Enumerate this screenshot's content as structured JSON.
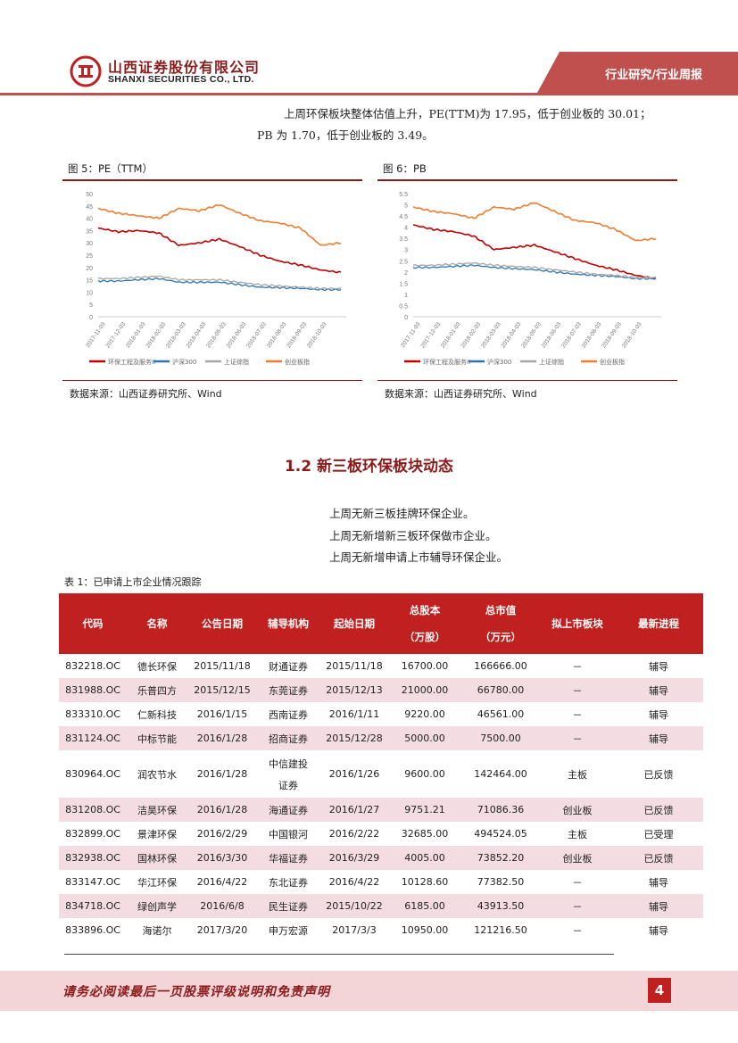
{
  "header": {
    "company_cn": "山西证券股份有限公司",
    "company_en": "SHANXI SECURITIES CO., LTD.",
    "tab_label": "行业研究/行业周报"
  },
  "intro": {
    "line1": "上周环保板块整体估值上升，PE(TTM)为 17.95，低于创业板的 30.01；",
    "line2": "PB 为 1.70，低于创业板的 3.49。"
  },
  "figure5": {
    "title": "图 5：PE（TTM）",
    "source": "数据来源：山西证券研究所、Wind",
    "legend": [
      "环保工程及服务II",
      "沪深300",
      "上证综指",
      "创业板指"
    ],
    "yticks": [
      "50",
      "45",
      "40",
      "35",
      "30",
      "25",
      "20",
      "15",
      "10",
      "5",
      "0"
    ],
    "xticks": [
      "2017-11-03",
      "2017-12-03",
      "2018-01-03",
      "2018-02-03",
      "2018-03-03",
      "2018-04-03",
      "2018-05-03",
      "2018-06-03",
      "2018-07-03",
      "2018-08-03",
      "2018-09-03",
      "2018-10-03"
    ]
  },
  "figure6": {
    "title": "图 6：PB",
    "source": "数据来源：山西证券研究所、Wind",
    "legend": [
      "环保工程及服务II",
      "沪深300",
      "上证综指",
      "创业板指"
    ],
    "yticks": [
      "5.5",
      "5",
      "4.5",
      "4",
      "3.5",
      "3",
      "2.5",
      "2",
      "1.5",
      "1",
      "0.5",
      "0"
    ],
    "xticks": [
      "2017-11-03",
      "2017-12-03",
      "2018-01-03",
      "2018-02-03",
      "2018-03-03",
      "2018-04-03",
      "2018-05-03",
      "2018-06-03",
      "2018-07-03",
      "2018-08-03",
      "2018-09-03",
      "2018-10-03"
    ]
  },
  "colors": {
    "env": "#c00000",
    "hs300": "#2e75b6",
    "sh": "#a6a6a6",
    "cyb": "#ed7d31"
  },
  "chart_data": [
    {
      "type": "line",
      "title": "PE（TTM）",
      "x": [
        "2017-11-03",
        "2017-12-03",
        "2018-01-03",
        "2018-02-03",
        "2018-03-03",
        "2018-04-03",
        "2018-05-03",
        "2018-06-03",
        "2018-07-03",
        "2018-08-03",
        "2018-09-03",
        "2018-10-03",
        "2018-11-02"
      ],
      "ylim": [
        0,
        50
      ],
      "series": [
        {
          "name": "环保工程及服务II",
          "values": [
            36,
            34.5,
            35,
            34,
            29,
            30,
            31.5,
            28.5,
            25,
            22.5,
            21,
            19,
            17.95
          ]
        },
        {
          "name": "沪深300",
          "values": [
            14.5,
            14.5,
            15,
            15.5,
            14,
            14,
            14,
            13,
            12,
            11.8,
            11.5,
            11,
            11
          ]
        },
        {
          "name": "上证综指",
          "values": [
            15.5,
            15.5,
            16,
            16.5,
            15,
            15,
            15,
            14,
            13,
            12.5,
            12,
            11.5,
            11.5
          ]
        },
        {
          "name": "创业板指",
          "values": [
            44,
            42,
            41,
            40,
            44,
            43,
            45.5,
            42,
            39,
            38,
            36,
            29,
            30.01
          ]
        }
      ]
    },
    {
      "type": "line",
      "title": "PB",
      "x": [
        "2017-11-03",
        "2017-12-03",
        "2018-01-03",
        "2018-02-03",
        "2018-03-03",
        "2018-04-03",
        "2018-05-03",
        "2018-06-03",
        "2018-07-03",
        "2018-08-03",
        "2018-09-03",
        "2018-10-03",
        "2018-11-02"
      ],
      "ylim": [
        0,
        5.5
      ],
      "series": [
        {
          "name": "环保工程及服务II",
          "values": [
            4.1,
            3.9,
            3.8,
            3.6,
            3.0,
            3.1,
            3.2,
            2.9,
            2.6,
            2.3,
            2.1,
            1.85,
            1.7
          ]
        },
        {
          "name": "沪深300",
          "values": [
            2.2,
            2.2,
            2.25,
            2.3,
            2.2,
            2.15,
            2.1,
            2.0,
            1.9,
            1.85,
            1.8,
            1.7,
            1.7
          ]
        },
        {
          "name": "上证综指",
          "values": [
            2.3,
            2.3,
            2.35,
            2.4,
            2.3,
            2.25,
            2.2,
            2.1,
            2.0,
            1.9,
            1.85,
            1.75,
            1.75
          ]
        },
        {
          "name": "创业板指",
          "values": [
            4.9,
            4.7,
            4.6,
            4.4,
            4.9,
            4.8,
            5.1,
            4.7,
            4.3,
            4.2,
            3.9,
            3.4,
            3.49
          ]
        }
      ]
    }
  ],
  "section": {
    "title": "1.2  新三板环保板块动态",
    "lines": [
      "上周无新三板挂牌环保企业。",
      "上周无新增新三板环保做市企业。",
      "上周无新增申请上市辅导环保企业。"
    ]
  },
  "table": {
    "title": "表 1：已申请上市企业情况跟踪",
    "headers": [
      "代码",
      "名称",
      "公告日期",
      "辅导机构",
      "起始日期",
      "总股本",
      "（万股）",
      "总市值",
      "（万元）",
      "拟上市板块",
      "最新进程"
    ],
    "rows": [
      [
        "832218.OC",
        "德长环保",
        "2015/11/18",
        "财通证券",
        "2015/11/18",
        "16700.00",
        "166666.00",
        "－",
        "辅导"
      ],
      [
        "831988.OC",
        "乐普四方",
        "2015/12/15",
        "东莞证券",
        "2015/12/13",
        "21000.00",
        "66780.00",
        "－",
        "辅导"
      ],
      [
        "833310.OC",
        "仁新科技",
        "2016/1/15",
        "西南证券",
        "2016/1/11",
        "9220.00",
        "46561.00",
        "－",
        "辅导"
      ],
      [
        "831124.OC",
        "中标节能",
        "2016/1/28",
        "招商证券",
        "2015/12/28",
        "5000.00",
        "7500.00",
        "－",
        "辅导"
      ],
      [
        "830964.OC",
        "润农节水",
        "2016/1/28",
        "中信建投",
        "2016/1/26",
        "9600.00",
        "142464.00",
        "主板",
        "已反馈",
        "证券"
      ],
      [
        "831208.OC",
        "洁昊环保",
        "2016/1/28",
        "海通证券",
        "2016/1/27",
        "9751.21",
        "71086.36",
        "创业板",
        "已反馈"
      ],
      [
        "832899.OC",
        "景津环保",
        "2016/2/29",
        "中国银河",
        "2016/2/22",
        "32685.00",
        "494524.05",
        "主板",
        "已受理"
      ],
      [
        "832938.OC",
        "国林环保",
        "2016/3/30",
        "华福证券",
        "2016/3/29",
        "4005.00",
        "73852.20",
        "创业板",
        "已反馈"
      ],
      [
        "833147.OC",
        "华江环保",
        "2016/4/22",
        "东北证券",
        "2016/4/22",
        "10128.60",
        "77382.50",
        "－",
        "辅导"
      ],
      [
        "834718.OC",
        "绿创声学",
        "2016/6/8",
        "民生证券",
        "2015/10/22",
        "6185.00",
        "43913.50",
        "－",
        "辅导"
      ],
      [
        "833896.OC",
        "海诺尔",
        "2017/3/20",
        "申万宏源",
        "2017/3/3",
        "10950.00",
        "121216.50",
        "－",
        "辅导"
      ]
    ]
  },
  "footer": {
    "disclaimer": "请务必阅读最后一页股票评级说明和免责声明",
    "page": "4"
  }
}
